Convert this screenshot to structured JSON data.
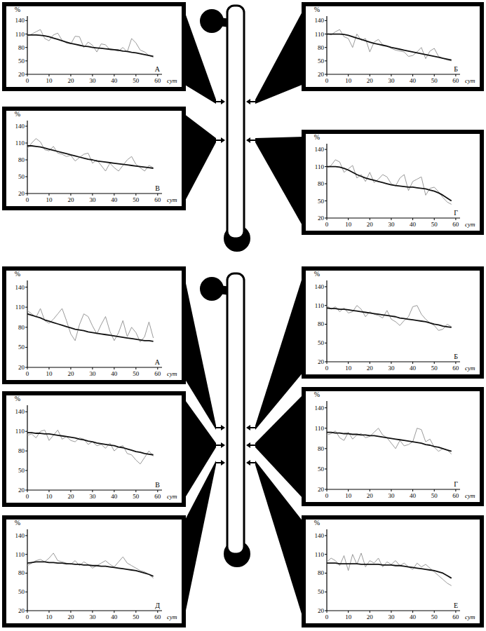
{
  "chart_data": [
    {
      "type": "line",
      "title": "А",
      "xlabel": "сут",
      "ylabel": "%",
      "x": [
        0,
        2,
        4,
        6,
        8,
        10,
        12,
        14,
        16,
        18,
        20,
        22,
        24,
        26,
        28,
        30,
        32,
        34,
        36,
        38,
        40,
        42,
        44,
        46,
        48,
        50,
        52,
        54,
        56,
        58
      ],
      "xlim": [
        0,
        62
      ],
      "xticks": [
        0,
        10,
        20,
        30,
        40,
        50,
        60
      ],
      "ylim": [
        20,
        150
      ],
      "yticks": [
        20,
        50,
        80,
        110,
        140
      ],
      "grid": false,
      "series": [
        {
          "color": "#9a9a9a",
          "values": [
            105,
            110,
            115,
            120,
            100,
            95,
            108,
            112,
            96,
            90,
            88,
            105,
            104,
            80,
            92,
            85,
            70,
            88,
            86,
            75,
            74,
            72,
            80,
            70,
            100,
            90,
            74,
            70,
            62,
            58
          ]
        },
        {
          "color": "#111111",
          "values": [
            108,
            108,
            108,
            107,
            106,
            104,
            101,
            98,
            95,
            92,
            89,
            87,
            85,
            83,
            82,
            80,
            79,
            78,
            77,
            76,
            75,
            74,
            72,
            71,
            69,
            68,
            66,
            64,
            62,
            60
          ]
        }
      ]
    },
    {
      "type": "line",
      "title": "Б",
      "xlabel": "сут",
      "ylabel": "%",
      "x": [
        0,
        2,
        4,
        6,
        8,
        10,
        12,
        14,
        16,
        18,
        20,
        22,
        24,
        26,
        28,
        30,
        32,
        34,
        36,
        38,
        40,
        42,
        44,
        46,
        48,
        50,
        52,
        54,
        56,
        58
      ],
      "xlim": [
        0,
        62
      ],
      "xticks": [
        0,
        10,
        20,
        30,
        40,
        50,
        60
      ],
      "ylim": [
        20,
        150
      ],
      "yticks": [
        20,
        50,
        80,
        110,
        140
      ],
      "grid": false,
      "series": [
        {
          "color": "#9a9a9a",
          "values": [
            112,
            108,
            115,
            120,
            104,
            100,
            80,
            110,
            96,
            100,
            70,
            92,
            98,
            86,
            84,
            78,
            74,
            72,
            70,
            60,
            62,
            70,
            80,
            55,
            72,
            78,
            60,
            56,
            52,
            50
          ]
        },
        {
          "color": "#111111",
          "values": [
            110,
            110,
            110,
            110,
            109,
            107,
            104,
            101,
            98,
            95,
            92,
            89,
            87,
            85,
            83,
            80,
            78,
            76,
            74,
            72,
            70,
            68,
            66,
            64,
            62,
            60,
            58,
            56,
            54,
            52
          ]
        }
      ]
    },
    {
      "type": "line",
      "title": "В",
      "xlabel": "сут",
      "ylabel": "%",
      "x": [
        0,
        2,
        4,
        6,
        8,
        10,
        12,
        14,
        16,
        18,
        20,
        22,
        24,
        26,
        28,
        30,
        32,
        34,
        36,
        38,
        40,
        42,
        44,
        46,
        48,
        50,
        52,
        54,
        56,
        58
      ],
      "xlim": [
        0,
        62
      ],
      "xticks": [
        0,
        10,
        20,
        30,
        40,
        50,
        60
      ],
      "ylim": [
        20,
        150
      ],
      "yticks": [
        20,
        50,
        80,
        110,
        140
      ],
      "grid": false,
      "series": [
        {
          "color": "#9a9a9a",
          "values": [
            100,
            110,
            118,
            112,
            98,
            96,
            104,
            92,
            90,
            86,
            88,
            78,
            84,
            90,
            92,
            74,
            80,
            70,
            60,
            74,
            66,
            60,
            70,
            80,
            86,
            72,
            66,
            60,
            70,
            66
          ]
        },
        {
          "color": "#111111",
          "values": [
            105,
            105,
            104,
            103,
            101,
            99,
            97,
            95,
            93,
            91,
            89,
            87,
            85,
            83,
            81,
            80,
            78,
            77,
            76,
            75,
            74,
            73,
            72,
            71,
            70,
            69,
            68,
            67,
            66,
            65
          ]
        }
      ]
    },
    {
      "type": "line",
      "title": "Г",
      "xlabel": "сут",
      "ylabel": "%",
      "x": [
        0,
        2,
        4,
        6,
        8,
        10,
        12,
        14,
        16,
        18,
        20,
        22,
        24,
        26,
        28,
        30,
        32,
        34,
        36,
        38,
        40,
        42,
        44,
        46,
        48,
        50,
        52,
        54,
        56,
        58
      ],
      "xlim": [
        0,
        62
      ],
      "xticks": [
        0,
        10,
        20,
        30,
        40,
        50,
        60
      ],
      "ylim": [
        20,
        150
      ],
      "yticks": [
        20,
        50,
        80,
        110,
        140
      ],
      "grid": false,
      "series": [
        {
          "color": "#9a9a9a",
          "values": [
            108,
            112,
            122,
            118,
            100,
            106,
            112,
            90,
            96,
            84,
            100,
            82,
            88,
            96,
            92,
            80,
            76,
            90,
            96,
            68,
            84,
            88,
            92,
            60,
            72,
            74,
            66,
            56,
            48,
            44
          ]
        },
        {
          "color": "#111111",
          "values": [
            110,
            110,
            110,
            109,
            107,
            104,
            100,
            96,
            93,
            90,
            88,
            86,
            84,
            82,
            80,
            78,
            77,
            76,
            75,
            74,
            74,
            73,
            72,
            71,
            69,
            67,
            64,
            60,
            55,
            50
          ]
        }
      ]
    },
    {
      "type": "line",
      "title": "А",
      "xlabel": "сут",
      "ylabel": "%",
      "x": [
        0,
        2,
        4,
        6,
        8,
        10,
        12,
        14,
        16,
        18,
        20,
        22,
        24,
        26,
        28,
        30,
        32,
        34,
        36,
        38,
        40,
        42,
        44,
        46,
        48,
        50,
        52,
        54,
        56,
        58
      ],
      "xlim": [
        0,
        62
      ],
      "xticks": [
        0,
        10,
        20,
        30,
        40,
        50,
        60
      ],
      "ylim": [
        20,
        150
      ],
      "yticks": [
        20,
        50,
        80,
        110,
        140
      ],
      "grid": false,
      "series": [
        {
          "color": "#9a9a9a",
          "values": [
            105,
            100,
            95,
            108,
            90,
            86,
            92,
            100,
            108,
            90,
            70,
            60,
            84,
            100,
            96,
            82,
            70,
            84,
            96,
            74,
            60,
            72,
            90,
            66,
            80,
            72,
            58,
            66,
            88,
            64
          ]
        },
        {
          "color": "#111111",
          "values": [
            100,
            98,
            96,
            94,
            91,
            89,
            87,
            85,
            83,
            81,
            79,
            77,
            76,
            75,
            73,
            72,
            71,
            70,
            69,
            68,
            67,
            66,
            65,
            64,
            63,
            62,
            61,
            60,
            60,
            59
          ]
        }
      ]
    },
    {
      "type": "line",
      "title": "Б",
      "xlabel": "сут",
      "ylabel": "%",
      "x": [
        0,
        2,
        4,
        6,
        8,
        10,
        12,
        14,
        16,
        18,
        20,
        22,
        24,
        26,
        28,
        30,
        32,
        34,
        36,
        38,
        40,
        42,
        44,
        46,
        48,
        50,
        52,
        54,
        56,
        58
      ],
      "xlim": [
        0,
        62
      ],
      "xticks": [
        0,
        10,
        20,
        30,
        40,
        50,
        60
      ],
      "ylim": [
        20,
        150
      ],
      "yticks": [
        20,
        50,
        80,
        110,
        140
      ],
      "grid": false,
      "series": [
        {
          "color": "#9a9a9a",
          "values": [
            110,
            104,
            108,
            100,
            106,
            98,
            100,
            110,
            104,
            92,
            100,
            96,
            94,
            90,
            102,
            88,
            84,
            78,
            86,
            92,
            108,
            110,
            96,
            88,
            82,
            78,
            70,
            72,
            80,
            76
          ]
        },
        {
          "color": "#111111",
          "values": [
            106,
            105,
            105,
            104,
            104,
            103,
            102,
            101,
            100,
            99,
            98,
            97,
            96,
            95,
            94,
            93,
            92,
            90,
            89,
            88,
            87,
            86,
            85,
            84,
            82,
            80,
            79,
            77,
            76,
            75
          ]
        }
      ]
    },
    {
      "type": "line",
      "title": "В",
      "xlabel": "сут",
      "ylabel": "%",
      "x": [
        0,
        2,
        4,
        6,
        8,
        10,
        12,
        14,
        16,
        18,
        20,
        22,
        24,
        26,
        28,
        30,
        32,
        34,
        36,
        38,
        40,
        42,
        44,
        46,
        48,
        50,
        52,
        54,
        56,
        58
      ],
      "xlim": [
        0,
        62
      ],
      "xticks": [
        0,
        10,
        20,
        30,
        40,
        50,
        60
      ],
      "ylim": [
        20,
        150
      ],
      "yticks": [
        20,
        50,
        80,
        110,
        140
      ],
      "grid": false,
      "series": [
        {
          "color": "#9a9a9a",
          "values": [
            104,
            106,
            100,
            110,
            112,
            96,
            104,
            112,
            98,
            102,
            96,
            94,
            100,
            98,
            90,
            94,
            88,
            90,
            84,
            92,
            80,
            86,
            88,
            76,
            74,
            66,
            60,
            70,
            80,
            72
          ]
        },
        {
          "color": "#111111",
          "values": [
            108,
            108,
            107,
            107,
            106,
            106,
            105,
            104,
            103,
            102,
            101,
            100,
            98,
            97,
            95,
            94,
            92,
            91,
            90,
            89,
            88,
            86,
            85,
            83,
            81,
            79,
            78,
            76,
            75,
            74
          ]
        }
      ]
    },
    {
      "type": "line",
      "title": "Г",
      "xlabel": "сут",
      "ylabel": "%",
      "x": [
        0,
        2,
        4,
        6,
        8,
        10,
        12,
        14,
        16,
        18,
        20,
        22,
        24,
        26,
        28,
        30,
        32,
        34,
        36,
        38,
        40,
        42,
        44,
        46,
        48,
        50,
        52,
        54,
        56,
        58
      ],
      "xlim": [
        0,
        62
      ],
      "xticks": [
        0,
        10,
        20,
        30,
        40,
        50,
        60
      ],
      "ylim": [
        20,
        150
      ],
      "yticks": [
        20,
        50,
        80,
        110,
        140
      ],
      "grid": false,
      "series": [
        {
          "color": "#9a9a9a",
          "values": [
            100,
            102,
            106,
            96,
            92,
            104,
            94,
            100,
            102,
            96,
            98,
            104,
            110,
            100,
            96,
            88,
            80,
            92,
            84,
            86,
            90,
            110,
            108,
            90,
            94,
            82,
            76,
            80,
            78,
            72
          ]
        },
        {
          "color": "#111111",
          "values": [
            104,
            104,
            103,
            103,
            102,
            102,
            101,
            101,
            100,
            100,
            99,
            99,
            98,
            97,
            96,
            95,
            94,
            93,
            92,
            91,
            90,
            89,
            88,
            86,
            85,
            83,
            82,
            80,
            78,
            76
          ]
        }
      ]
    },
    {
      "type": "line",
      "title": "Д",
      "xlabel": "сут",
      "ylabel": "%",
      "x": [
        0,
        2,
        4,
        6,
        8,
        10,
        12,
        14,
        16,
        18,
        20,
        22,
        24,
        26,
        28,
        30,
        32,
        34,
        36,
        38,
        40,
        42,
        44,
        46,
        48,
        50,
        52,
        54,
        56,
        58
      ],
      "xlim": [
        0,
        62
      ],
      "xticks": [
        0,
        10,
        20,
        30,
        40,
        50,
        60
      ],
      "ylim": [
        20,
        150
      ],
      "yticks": [
        20,
        50,
        80,
        110,
        140
      ],
      "grid": false,
      "series": [
        {
          "color": "#9a9a9a",
          "values": [
            92,
            96,
            100,
            102,
            98,
            104,
            112,
            100,
            98,
            96,
            94,
            100,
            92,
            98,
            94,
            88,
            92,
            96,
            100,
            94,
            90,
            98,
            106,
            96,
            92,
            88,
            84,
            82,
            78,
            72
          ]
        },
        {
          "color": "#111111",
          "values": [
            96,
            97,
            98,
            98,
            98,
            97,
            97,
            96,
            96,
            95,
            95,
            94,
            94,
            93,
            93,
            92,
            92,
            91,
            91,
            90,
            89,
            88,
            87,
            86,
            85,
            84,
            82,
            80,
            78,
            75
          ]
        }
      ]
    },
    {
      "type": "line",
      "title": "Е",
      "xlabel": "сут",
      "ylabel": "%",
      "x": [
        0,
        2,
        4,
        6,
        8,
        10,
        12,
        14,
        16,
        18,
        20,
        22,
        24,
        26,
        28,
        30,
        32,
        34,
        36,
        38,
        40,
        42,
        44,
        46,
        48,
        50,
        52,
        54,
        56,
        58
      ],
      "xlim": [
        0,
        62
      ],
      "xticks": [
        0,
        10,
        20,
        30,
        40,
        50,
        60
      ],
      "ylim": [
        20,
        150
      ],
      "yticks": [
        20,
        50,
        80,
        110,
        140
      ],
      "grid": false,
      "series": [
        {
          "color": "#9a9a9a",
          "values": [
            98,
            104,
            100,
            92,
            108,
            84,
            110,
            94,
            112,
            90,
            100,
            96,
            104,
            90,
            98,
            94,
            100,
            92,
            96,
            90,
            86,
            96,
            90,
            94,
            88,
            82,
            76,
            70,
            64,
            60
          ]
        },
        {
          "color": "#111111",
          "values": [
            96,
            96,
            96,
            95,
            95,
            95,
            95,
            95,
            94,
            94,
            94,
            94,
            94,
            93,
            93,
            93,
            92,
            92,
            91,
            90,
            89,
            88,
            87,
            86,
            85,
            84,
            82,
            80,
            76,
            72
          ]
        }
      ]
    }
  ]
}
